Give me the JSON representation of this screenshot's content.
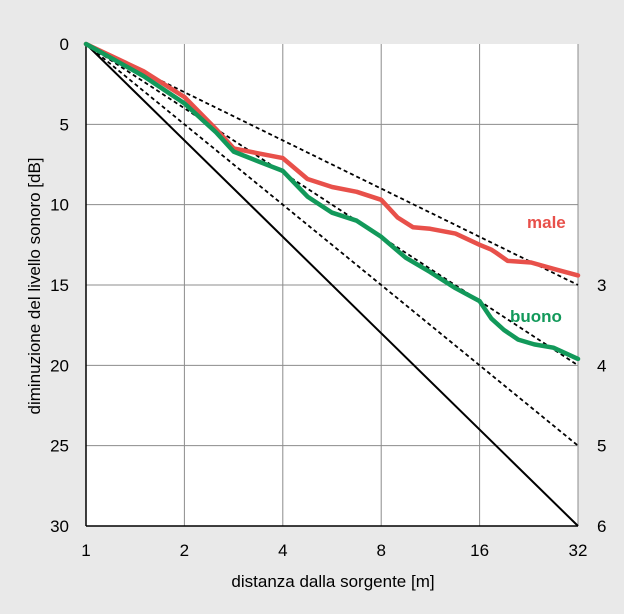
{
  "chart_data": {
    "type": "line",
    "title": "",
    "xlabel": "distanza dalla sorgente [m]",
    "ylabel": "diminuzione del livello sonoro [dB]",
    "x_scale": "log2",
    "xlim": [
      1,
      32
    ],
    "ylim": [
      0,
      30
    ],
    "y_inverted": true,
    "grid": true,
    "x_ticks": [
      1,
      2,
      4,
      8,
      16,
      32
    ],
    "x_tick_labels": [
      "1",
      "2",
      "4",
      "8",
      "16",
      "32"
    ],
    "y_ticks": [
      0,
      5,
      10,
      15,
      20,
      25,
      30
    ],
    "y_tick_labels": [
      "0",
      "5",
      "10",
      "15",
      "20",
      "25",
      "30"
    ],
    "reference_lines": [
      {
        "label": "3",
        "style": "dotted",
        "color": "#000000",
        "x": [
          1,
          32
        ],
        "y": [
          0,
          15
        ]
      },
      {
        "label": "4",
        "style": "dotted",
        "color": "#000000",
        "x": [
          1,
          32
        ],
        "y": [
          0,
          20
        ]
      },
      {
        "label": "5",
        "style": "dotted",
        "color": "#000000",
        "x": [
          1,
          32
        ],
        "y": [
          0,
          25
        ]
      },
      {
        "label": "6",
        "style": "solid",
        "color": "#000000",
        "x": [
          1,
          32
        ],
        "y": [
          0,
          30
        ]
      }
    ],
    "series": [
      {
        "name": "male",
        "color": "#e8504a",
        "x": [
          1,
          1.5,
          2,
          2.5,
          2.83,
          3.36,
          4,
          4.76,
          5.66,
          6.73,
          8,
          8.98,
          10,
          11.3,
          13.5,
          16,
          17.4,
          18,
          19.5,
          23,
          27,
          32
        ],
        "y": [
          0,
          1.7,
          3.3,
          5.3,
          6.5,
          6.8,
          7.1,
          8.4,
          8.9,
          9.2,
          9.7,
          10.8,
          11.4,
          11.5,
          11.8,
          12.5,
          12.8,
          13.0,
          13.5,
          13.6,
          14.0,
          14.4
        ]
      },
      {
        "name": "buono",
        "color": "#12995a",
        "x": [
          1,
          1.5,
          2,
          2.5,
          2.83,
          3.36,
          4,
          4.76,
          5.66,
          6.73,
          8,
          9.51,
          11.3,
          13.5,
          16,
          17.4,
          19,
          21,
          23.5,
          26.9,
          32
        ],
        "y": [
          0,
          2.0,
          3.7,
          5.5,
          6.7,
          7.3,
          7.9,
          9.5,
          10.5,
          11.0,
          12.0,
          13.3,
          14.2,
          15.2,
          16.0,
          17.1,
          17.8,
          18.4,
          18.7,
          18.9,
          19.6
        ]
      }
    ]
  }
}
